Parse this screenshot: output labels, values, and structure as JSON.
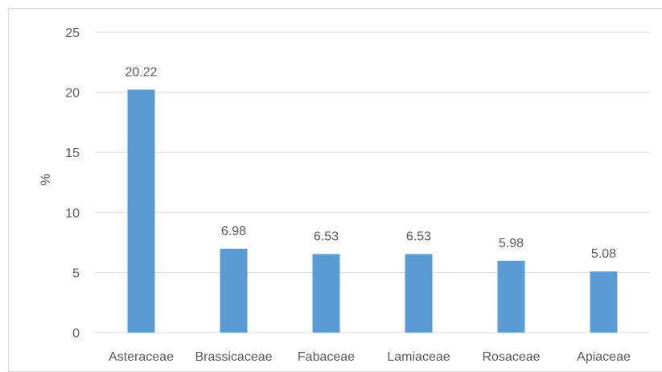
{
  "chart_data": {
    "type": "bar",
    "title": "",
    "xlabel": "",
    "ylabel": "%",
    "ylim": [
      0,
      25
    ],
    "yticks": [
      0,
      5,
      10,
      15,
      20,
      25
    ],
    "grid": true,
    "legend": "none",
    "categories": [
      "Asteraceae",
      "Brassicaceae",
      "Fabaceae",
      "Lamiaceae",
      "Rosaceae",
      "Apiaceae"
    ],
    "values": [
      20.22,
      6.98,
      6.53,
      6.53,
      5.98,
      5.08
    ],
    "data_labels": [
      "20.22",
      "6.98",
      "6.53",
      "6.53",
      "5.98",
      "5.08"
    ],
    "bar_color": "#5b9bd5",
    "grid_color": "#d9d9d9",
    "text_color": "#595959"
  }
}
